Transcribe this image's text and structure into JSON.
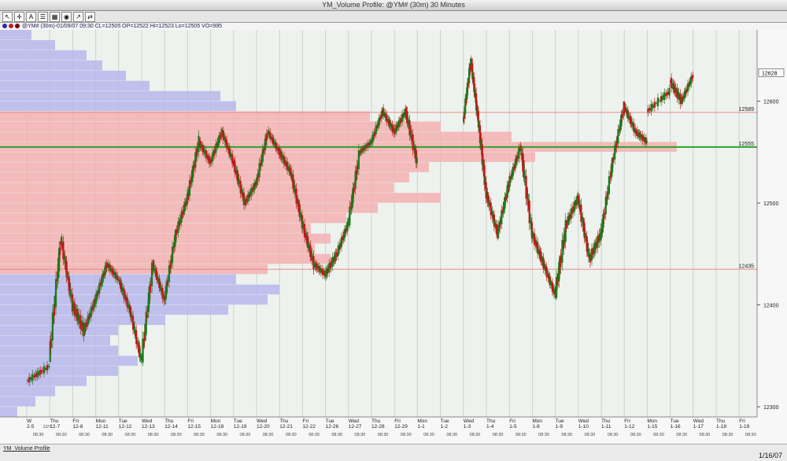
{
  "window": {
    "title": "YM_Volume Profile: @YM# (30m) 30 Minutes"
  },
  "info_line": "@YM# (30m)-01/09/07 09:30 CL=12505 OP=12522 Hi=12523 Lo=12505 VO=995",
  "colors": {
    "up": "#1b7a1b",
    "down": "#c01818",
    "profile_red": "#f3b2b2",
    "profile_blue": "#b7b7ec",
    "level_line": "#e88c8c",
    "poc_line": "#2ea02e",
    "plot_bg": "#eef2ee"
  },
  "chart_data": {
    "type": "candlestick",
    "ylim": [
      12290,
      12670
    ],
    "y_ticks": [
      12300,
      12400,
      12500,
      12600
    ],
    "last_price": 12628,
    "levels": [
      {
        "value": 12589,
        "label": "12589",
        "kind": "value-area-high"
      },
      {
        "value": 12555,
        "label": "12555",
        "kind": "point-of-control"
      },
      {
        "value": 12435,
        "label": "12435",
        "kind": "value-area-low"
      }
    ],
    "value_area": [
      12435,
      12589
    ],
    "sessions": [
      {
        "day": "W",
        "date": "2-5",
        "segments": [
          [
            12325,
            12340,
            12310,
            12350
          ]
        ]
      },
      {
        "day": "Thu",
        "date": "12-7",
        "segments": [
          [
            12350,
            12465,
            12345,
            12470
          ],
          [
            12465,
            12400,
            12390,
            12470
          ]
        ]
      },
      {
        "day": "Fri",
        "date": "12-8",
        "segments": [
          [
            12400,
            12375,
            12335,
            12410
          ],
          [
            12375,
            12405,
            12365,
            12415
          ]
        ]
      },
      {
        "day": "Mon",
        "date": "12-11",
        "segments": [
          [
            12405,
            12440,
            12395,
            12445
          ],
          [
            12440,
            12425,
            12415,
            12450
          ]
        ]
      },
      {
        "day": "Tue",
        "date": "12-12",
        "segments": [
          [
            12425,
            12395,
            12385,
            12435
          ],
          [
            12395,
            12345,
            12335,
            12400
          ]
        ]
      },
      {
        "day": "Wed",
        "date": "12-13",
        "segments": [
          [
            12345,
            12440,
            12340,
            12445
          ],
          [
            12440,
            12405,
            12395,
            12445
          ]
        ]
      },
      {
        "day": "Thu",
        "date": "12-14",
        "segments": [
          [
            12405,
            12470,
            12400,
            12475
          ],
          [
            12470,
            12505,
            12460,
            12515
          ]
        ]
      },
      {
        "day": "Fri",
        "date": "12-15",
        "segments": [
          [
            12505,
            12560,
            12500,
            12575
          ],
          [
            12560,
            12540,
            12530,
            12570
          ]
        ]
      },
      {
        "day": "Mon",
        "date": "12-18",
        "segments": [
          [
            12540,
            12570,
            12530,
            12575
          ],
          [
            12570,
            12540,
            12530,
            12575
          ]
        ]
      },
      {
        "day": "Tue",
        "date": "12-19",
        "segments": [
          [
            12540,
            12500,
            12490,
            12550
          ],
          [
            12500,
            12520,
            12490,
            12530
          ]
        ]
      },
      {
        "day": "Wed",
        "date": "12-20",
        "segments": [
          [
            12520,
            12570,
            12510,
            12575
          ],
          [
            12570,
            12550,
            12540,
            12575
          ]
        ]
      },
      {
        "day": "Thu",
        "date": "12-21",
        "segments": [
          [
            12550,
            12530,
            12520,
            12565
          ],
          [
            12530,
            12480,
            12470,
            12540
          ]
        ]
      },
      {
        "day": "Fri",
        "date": "12-22",
        "segments": [
          [
            12480,
            12440,
            12425,
            12490
          ],
          [
            12440,
            12430,
            12415,
            12450
          ]
        ]
      },
      {
        "day": "Tue",
        "date": "12-26",
        "segments": [
          [
            12430,
            12450,
            12410,
            12460
          ],
          [
            12450,
            12480,
            12440,
            12490
          ]
        ]
      },
      {
        "day": "Wed",
        "date": "12-27",
        "segments": [
          [
            12480,
            12550,
            12475,
            12560
          ],
          [
            12550,
            12560,
            12540,
            12565
          ]
        ]
      },
      {
        "day": "Thu",
        "date": "12-28",
        "segments": [
          [
            12560,
            12590,
            12555,
            12595
          ],
          [
            12590,
            12570,
            12560,
            12600
          ]
        ]
      },
      {
        "day": "Fri",
        "date": "12-29",
        "segments": [
          [
            12570,
            12590,
            12560,
            12600
          ],
          [
            12590,
            12540,
            12520,
            12595
          ]
        ]
      },
      {
        "day": "Mon",
        "date": "1-1",
        "segments": []
      },
      {
        "day": "Tue",
        "date": "1-2",
        "segments": []
      },
      {
        "day": "Wed",
        "date": "1-3",
        "segments": [
          [
            12580,
            12640,
            12575,
            12645
          ],
          [
            12640,
            12580,
            12565,
            12645
          ],
          [
            12580,
            12510,
            12490,
            12585
          ]
        ]
      },
      {
        "day": "Thu",
        "date": "1-4",
        "segments": [
          [
            12510,
            12470,
            12460,
            12520
          ],
          [
            12470,
            12520,
            12465,
            12530
          ]
        ]
      },
      {
        "day": "Fri",
        "date": "1-5",
        "segments": [
          [
            12520,
            12555,
            12510,
            12560
          ],
          [
            12555,
            12470,
            12455,
            12560
          ]
        ]
      },
      {
        "day": "Mon",
        "date": "1-8",
        "segments": [
          [
            12470,
            12440,
            12420,
            12480
          ],
          [
            12440,
            12410,
            12400,
            12450
          ]
        ]
      },
      {
        "day": "Tue",
        "date": "1-9",
        "segments": [
          [
            12410,
            12480,
            12405,
            12515
          ],
          [
            12480,
            12505,
            12470,
            12523
          ]
        ]
      },
      {
        "day": "Wed",
        "date": "1-10",
        "segments": [
          [
            12505,
            12445,
            12430,
            12510
          ],
          [
            12445,
            12470,
            12415,
            12480
          ]
        ]
      },
      {
        "day": "Thu",
        "date": "1-11",
        "segments": [
          [
            12470,
            12540,
            12465,
            12545
          ],
          [
            12540,
            12595,
            12535,
            12600
          ]
        ]
      },
      {
        "day": "Fri",
        "date": "1-12",
        "segments": [
          [
            12595,
            12570,
            12555,
            12600
          ],
          [
            12570,
            12560,
            12545,
            12580
          ]
        ]
      },
      {
        "day": "Mon",
        "date": "1-15",
        "segments": [
          [
            12590,
            12610,
            12585,
            12630
          ]
        ]
      },
      {
        "day": "Tue",
        "date": "1-16",
        "segments": [
          [
            12620,
            12600,
            12585,
            12640
          ],
          [
            12600,
            12625,
            12595,
            12635
          ]
        ]
      },
      {
        "day": "Wed",
        "date": "1-17",
        "segments": []
      },
      {
        "day": "Thu",
        "date": "1-18",
        "segments": []
      },
      {
        "day": "Fri",
        "date": "1-19",
        "segments": []
      }
    ],
    "time_label": "08:30",
    "first_month_marker": "12/7",
    "volume_profile": [
      [
        12295,
        22
      ],
      [
        12305,
        45
      ],
      [
        12315,
        70
      ],
      [
        12325,
        110
      ],
      [
        12335,
        150
      ],
      [
        12345,
        175
      ],
      [
        12355,
        150
      ],
      [
        12365,
        140
      ],
      [
        12375,
        150
      ],
      [
        12385,
        210
      ],
      [
        12395,
        290
      ],
      [
        12405,
        340
      ],
      [
        12415,
        355
      ],
      [
        12425,
        300
      ],
      [
        12435,
        340
      ],
      [
        12445,
        420
      ],
      [
        12455,
        400
      ],
      [
        12465,
        420
      ],
      [
        12475,
        395
      ],
      [
        12485,
        440
      ],
      [
        12495,
        480
      ],
      [
        12505,
        560
      ],
      [
        12515,
        500
      ],
      [
        12525,
        520
      ],
      [
        12535,
        545
      ],
      [
        12545,
        680
      ],
      [
        12555,
        860
      ],
      [
        12565,
        650
      ],
      [
        12575,
        560
      ],
      [
        12585,
        470
      ],
      [
        12595,
        300
      ],
      [
        12605,
        280
      ],
      [
        12615,
        190
      ],
      [
        12625,
        160
      ],
      [
        12635,
        130
      ],
      [
        12645,
        110
      ],
      [
        12655,
        70
      ],
      [
        12665,
        40
      ]
    ]
  },
  "status": {
    "tab_name": "YM_Volume Profile",
    "date": "1/16/07"
  }
}
